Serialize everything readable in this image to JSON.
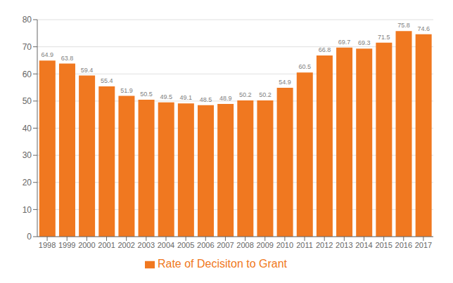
{
  "chart_data": {
    "type": "bar",
    "categories": [
      "1998",
      "1999",
      "2000",
      "2001",
      "2002",
      "2003",
      "2004",
      "2005",
      "2006",
      "2007",
      "2008",
      "2009",
      "2010",
      "2011",
      "2012",
      "2013",
      "2014",
      "2015",
      "2016",
      "2017"
    ],
    "series": [
      {
        "name": "Rate of Decisiton to Grant",
        "color": "#F07820",
        "values": [
          64.9,
          63.8,
          59.4,
          55.4,
          51.9,
          50.5,
          49.5,
          49.1,
          48.5,
          48.9,
          50.2,
          50.2,
          54.9,
          60.5,
          66.8,
          69.7,
          69.3,
          71.5,
          75.8,
          74.6
        ]
      }
    ],
    "ylim": [
      0,
      80
    ],
    "yticks": [
      0,
      10,
      20,
      30,
      40,
      50,
      60,
      70,
      80
    ],
    "grid": true,
    "legend": "bottom",
    "data_labels": true
  }
}
